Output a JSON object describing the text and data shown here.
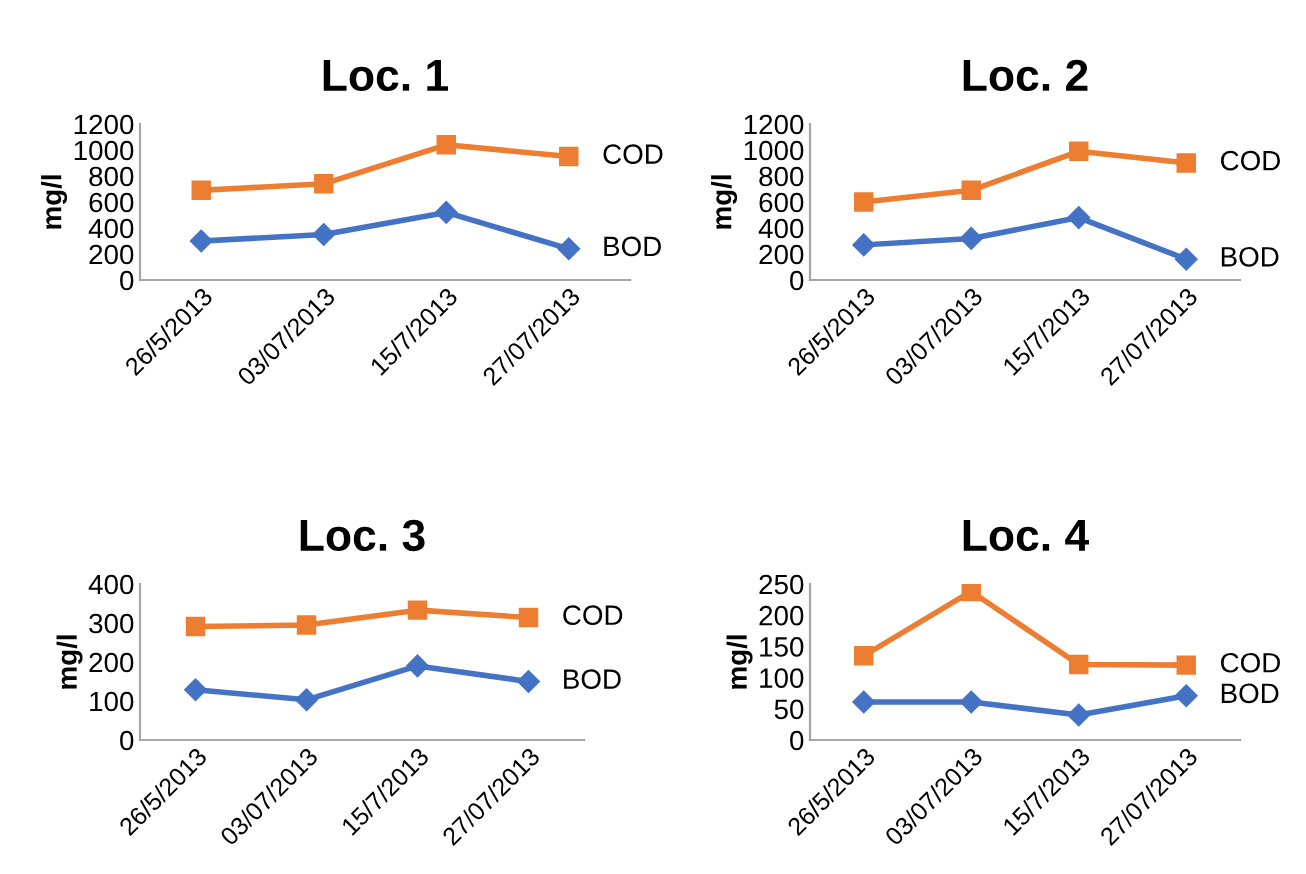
{
  "chart_data": [
    {
      "type": "line",
      "title": "Loc. 1",
      "ylabel": "mg/l",
      "categories": [
        "26/5/2013",
        "03/07/2013",
        "15/7/2013",
        "27/07/2013"
      ],
      "ylim": [
        0,
        1200
      ],
      "yticks": [
        0,
        200,
        400,
        600,
        800,
        1000,
        1200
      ],
      "grid": false,
      "legend": false,
      "series": [
        {
          "name": "COD",
          "color": "#ed7d31",
          "marker": "square",
          "values": [
            690,
            740,
            1040,
            950
          ]
        },
        {
          "name": "BOD",
          "color": "#4472c4",
          "marker": "diamond",
          "values": [
            300,
            350,
            520,
            240
          ]
        }
      ]
    },
    {
      "type": "line",
      "title": "Loc. 2",
      "ylabel": "mg/l",
      "categories": [
        "26/5/2013",
        "03/07/2013",
        "15/7/2013",
        "27/07/2013"
      ],
      "ylim": [
        0,
        1200
      ],
      "yticks": [
        0,
        200,
        400,
        600,
        800,
        1000,
        1200
      ],
      "grid": false,
      "legend": false,
      "series": [
        {
          "name": "COD",
          "color": "#ed7d31",
          "marker": "square",
          "values": [
            600,
            690,
            990,
            900
          ]
        },
        {
          "name": "BOD",
          "color": "#4472c4",
          "marker": "diamond",
          "values": [
            270,
            320,
            480,
            160
          ]
        }
      ]
    },
    {
      "type": "line",
      "title": "Loc. 3",
      "ylabel": "mg/l",
      "categories": [
        "26/5/2013",
        "03/07/2013",
        "15/7/2013",
        "27/07/2013"
      ],
      "ylim": [
        0,
        400
      ],
      "yticks": [
        0,
        100,
        200,
        300,
        400
      ],
      "grid": false,
      "legend": false,
      "series": [
        {
          "name": "COD",
          "color": "#ed7d31",
          "marker": "square",
          "values": [
            291,
            295,
            333,
            314
          ]
        },
        {
          "name": "BOD",
          "color": "#4472c4",
          "marker": "diamond",
          "values": [
            129,
            103,
            190,
            150
          ]
        }
      ]
    },
    {
      "type": "line",
      "title": "Loc. 4",
      "ylabel": "mg/l",
      "categories": [
        "26/5/2013",
        "03/07/2013",
        "15/7/2013",
        "27/07/2013"
      ],
      "ylim": [
        0,
        250
      ],
      "yticks": [
        0,
        50,
        100,
        150,
        200,
        250
      ],
      "grid": false,
      "legend": false,
      "series": [
        {
          "name": "COD",
          "color": "#ed7d31",
          "marker": "square",
          "values": [
            135,
            238,
            121,
            120
          ]
        },
        {
          "name": "BOD",
          "color": "#4472c4",
          "marker": "diamond",
          "values": [
            61,
            61,
            40,
            71
          ]
        }
      ]
    }
  ]
}
